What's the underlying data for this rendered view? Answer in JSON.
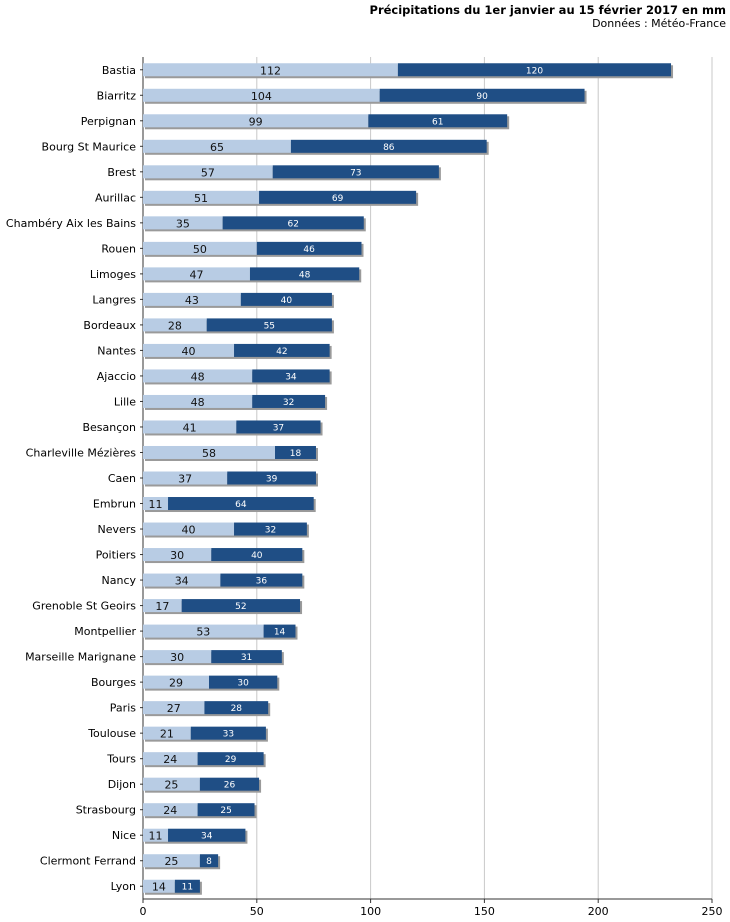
{
  "chart_data": {
    "type": "bar",
    "orientation": "horizontal",
    "stacked": true,
    "title": "Précipitations du 1er janvier au 15 février 2017 en mm",
    "subtitle": "Données : Météo-France",
    "categories": [
      "Bastia",
      "Biarritz",
      "Perpignan",
      "Bourg St Maurice",
      "Brest",
      "Aurillac",
      "Chambéry Aix les Bains",
      "Rouen",
      "Limoges",
      "Langres",
      "Bordeaux",
      "Nantes",
      "Ajaccio",
      "Lille",
      "Besançon",
      "Charleville Mézières",
      "Caen",
      "Embrun",
      "Nevers",
      "Poitiers",
      "Nancy",
      "Grenoble St Geoirs",
      "Montpellier",
      "Marseille Marignane",
      "Bourges",
      "Paris",
      "Toulouse",
      "Tours",
      "Dijon",
      "Strasbourg",
      "Nice",
      "Clermont Ferrand",
      "Lyon"
    ],
    "series": [
      {
        "name": "series1",
        "color": "#b8cce4",
        "values": [
          112,
          104,
          99,
          65,
          57,
          51,
          35,
          50,
          47,
          43,
          28,
          40,
          48,
          48,
          41,
          58,
          37,
          11,
          40,
          30,
          34,
          17,
          53,
          30,
          29,
          27,
          21,
          24,
          25,
          24,
          11,
          25,
          14
        ]
      },
      {
        "name": "series2",
        "color": "#1f4e85",
        "values": [
          120,
          90,
          61,
          86,
          73,
          69,
          62,
          46,
          48,
          40,
          55,
          42,
          34,
          32,
          37,
          18,
          39,
          64,
          32,
          40,
          36,
          52,
          14,
          31,
          30,
          28,
          33,
          29,
          26,
          25,
          34,
          8,
          11
        ]
      }
    ],
    "xlim": [
      0,
      250
    ],
    "xticks": [
      "0",
      "50",
      "100",
      "150",
      "200",
      "250"
    ],
    "grid": true
  }
}
